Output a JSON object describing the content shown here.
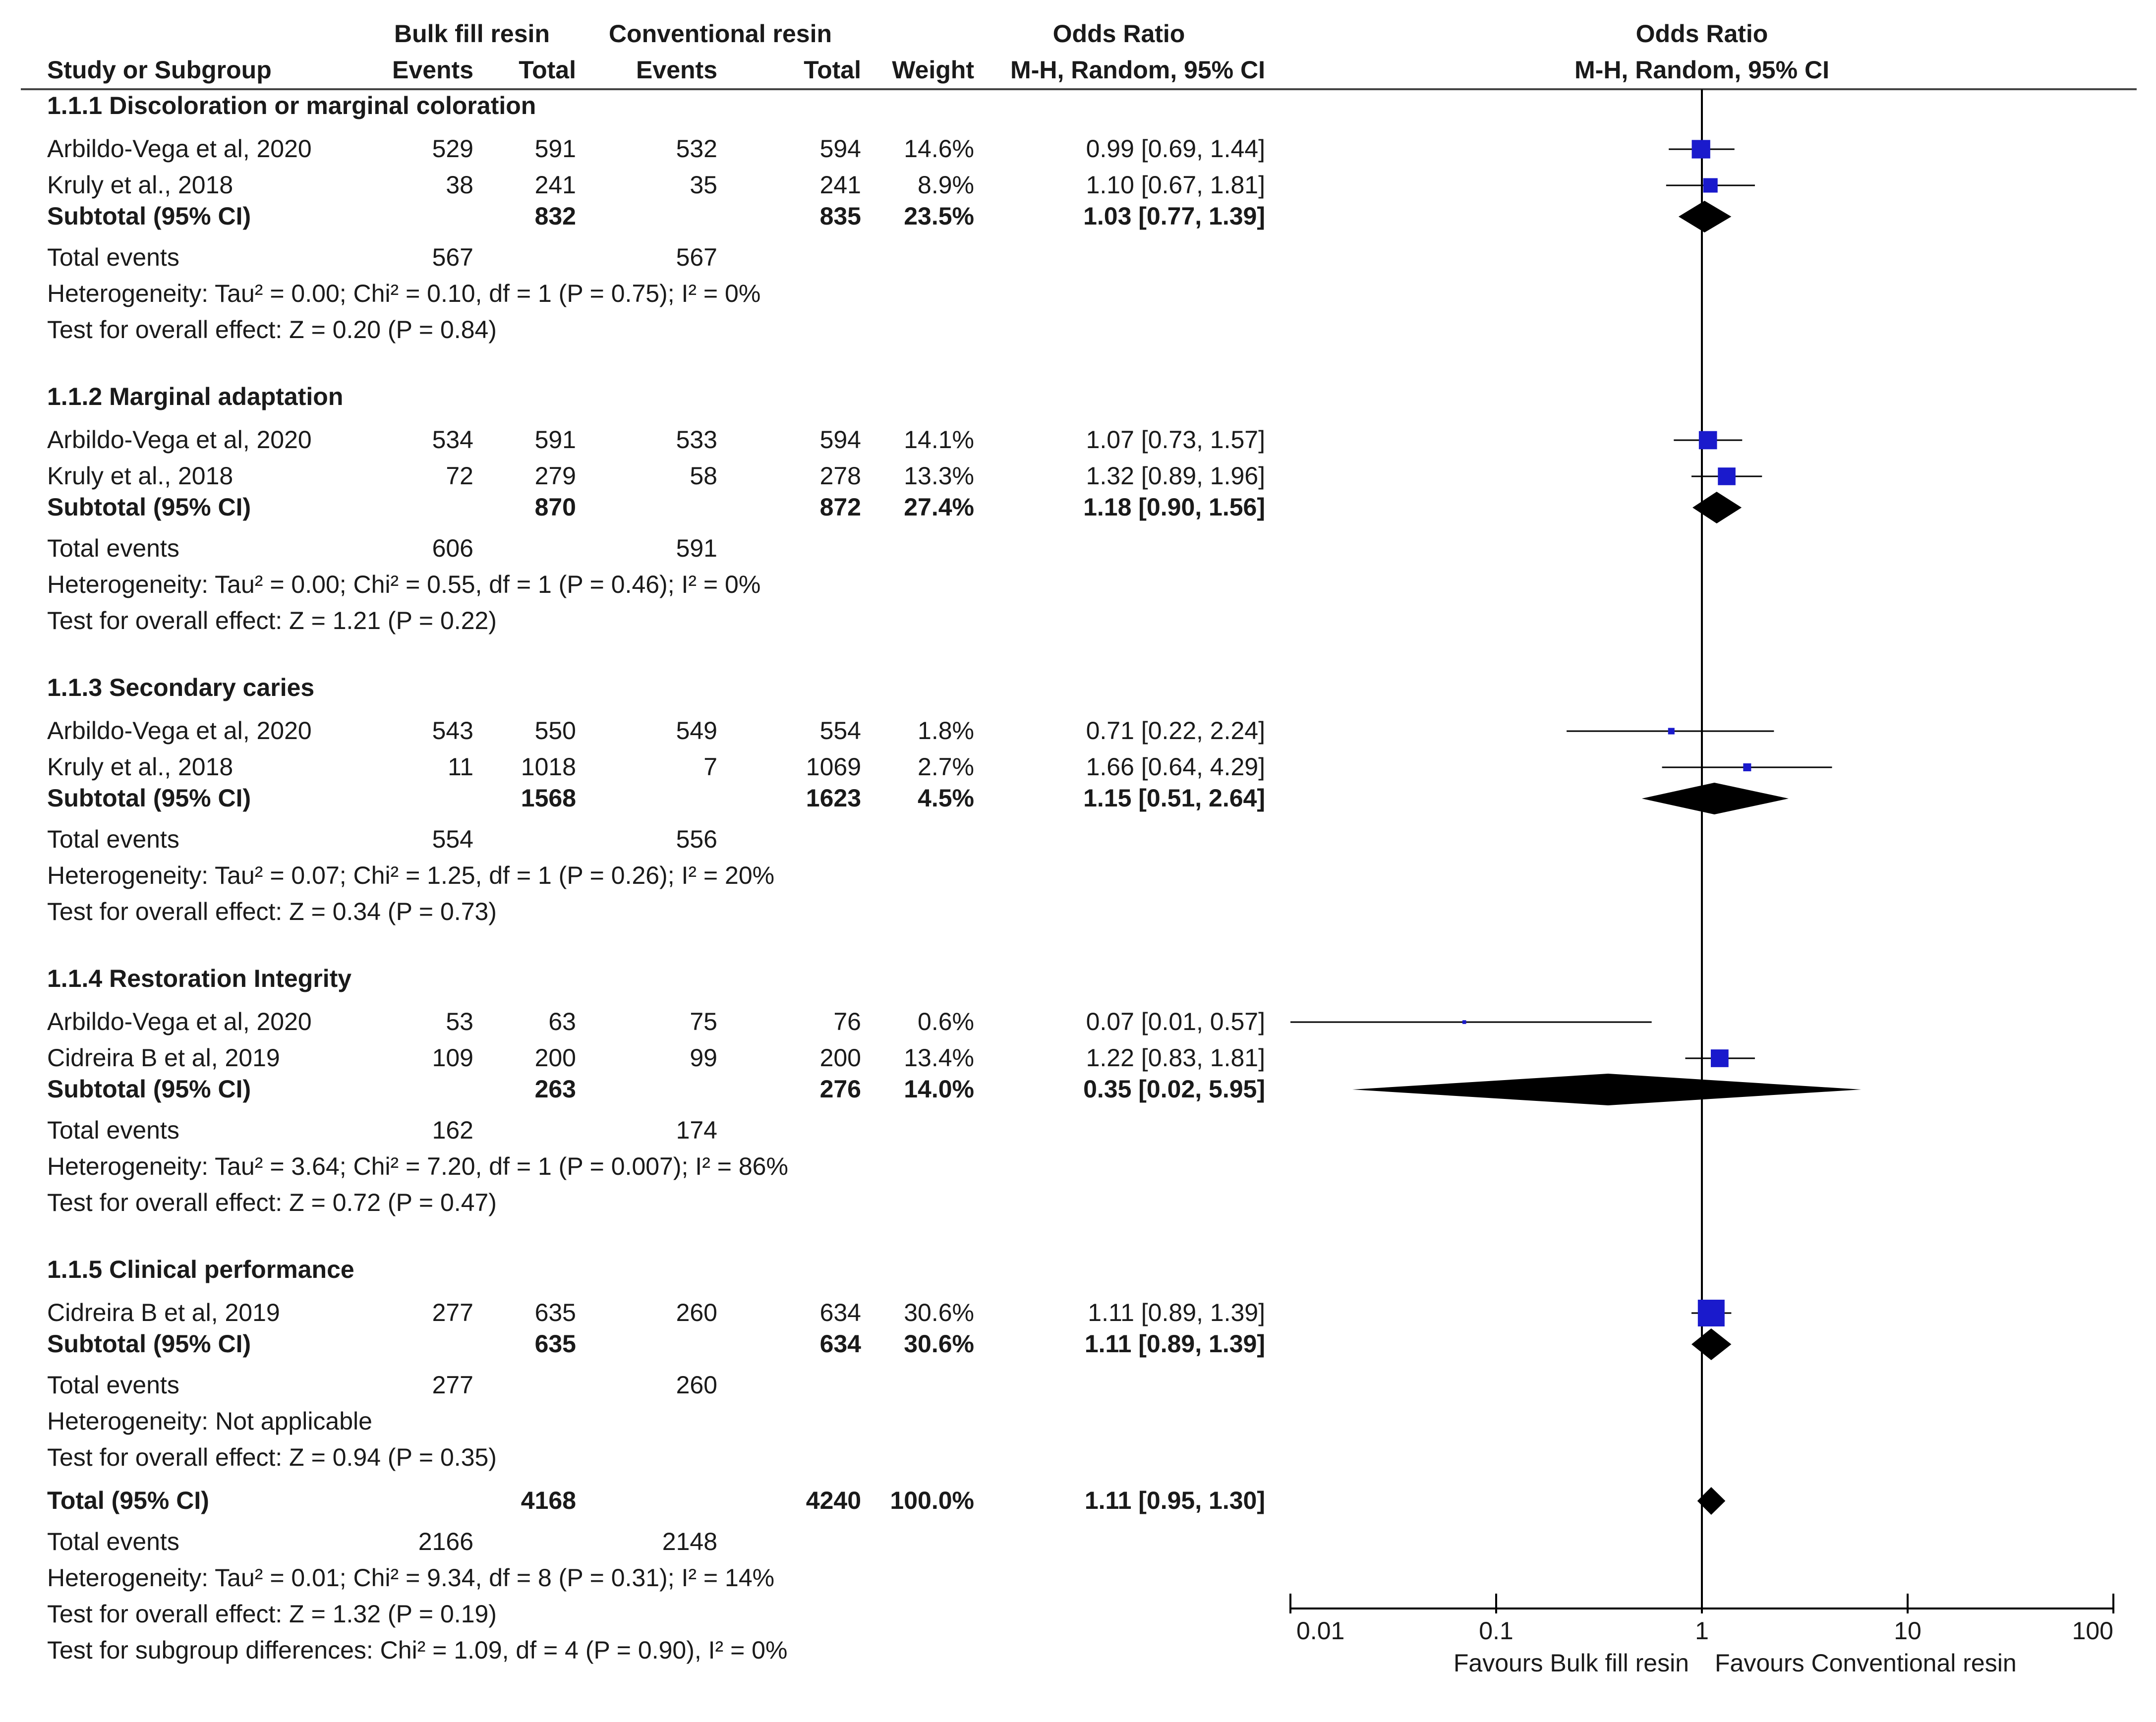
{
  "chart_data": {
    "type": "forest",
    "header": {
      "group1": "Bulk fill resin",
      "group2": "Conventional resin",
      "or_title": "Odds Ratio",
      "col_study": "Study or Subgroup",
      "col_events": "Events",
      "col_total": "Total",
      "col_weight": "Weight",
      "col_method": "M-H, Random, 95% CI"
    },
    "subgroups": [
      {
        "title": "1.1.1 Discoloration or marginal coloration",
        "studies": [
          {
            "name": "Arbildo-Vega et al, 2020",
            "e1": "529",
            "n1": "591",
            "e2": "532",
            "n2": "594",
            "weight": "14.6%",
            "ci_text": "0.99 [0.69, 1.44]",
            "or": 0.99,
            "lo": 0.69,
            "hi": 1.44,
            "w": 14.6
          },
          {
            "name": "Kruly et al., 2018",
            "e1": "38",
            "n1": "241",
            "e2": "35",
            "n2": "241",
            "weight": "8.9%",
            "ci_text": "1.10 [0.67, 1.81]",
            "or": 1.1,
            "lo": 0.67,
            "hi": 1.81,
            "w": 8.9
          }
        ],
        "subtotal": {
          "label": "Subtotal (95% CI)",
          "n1": "832",
          "n2": "835",
          "weight": "23.5%",
          "ci_text": "1.03 [0.77, 1.39]",
          "or": 1.03,
          "lo": 0.77,
          "hi": 1.39
        },
        "total_events": {
          "label": "Total events",
          "e1": "567",
          "e2": "567"
        },
        "heterogeneity": "Heterogeneity: Tau² = 0.00; Chi² = 0.10, df = 1 (P = 0.75); I² = 0%",
        "overall": "Test for overall effect: Z = 0.20 (P = 0.84)"
      },
      {
        "title": "1.1.2 Marginal adaptation",
        "studies": [
          {
            "name": "Arbildo-Vega et al, 2020",
            "e1": "534",
            "n1": "591",
            "e2": "533",
            "n2": "594",
            "weight": "14.1%",
            "ci_text": "1.07 [0.73, 1.57]",
            "or": 1.07,
            "lo": 0.73,
            "hi": 1.57,
            "w": 14.1
          },
          {
            "name": "Kruly et al., 2018",
            "e1": "72",
            "n1": "279",
            "e2": "58",
            "n2": "278",
            "weight": "13.3%",
            "ci_text": "1.32 [0.89, 1.96]",
            "or": 1.32,
            "lo": 0.89,
            "hi": 1.96,
            "w": 13.3
          }
        ],
        "subtotal": {
          "label": "Subtotal (95% CI)",
          "n1": "870",
          "n2": "872",
          "weight": "27.4%",
          "ci_text": "1.18 [0.90, 1.56]",
          "or": 1.18,
          "lo": 0.9,
          "hi": 1.56
        },
        "total_events": {
          "label": "Total events",
          "e1": "606",
          "e2": "591"
        },
        "heterogeneity": "Heterogeneity: Tau² = 0.00; Chi² = 0.55, df = 1 (P = 0.46); I² = 0%",
        "overall": "Test for overall effect: Z = 1.21 (P = 0.22)"
      },
      {
        "title": "1.1.3 Secondary caries",
        "studies": [
          {
            "name": "Arbildo-Vega et al, 2020",
            "e1": "543",
            "n1": "550",
            "e2": "549",
            "n2": "554",
            "weight": "1.8%",
            "ci_text": "0.71 [0.22, 2.24]",
            "or": 0.71,
            "lo": 0.22,
            "hi": 2.24,
            "w": 1.8
          },
          {
            "name": "Kruly et al., 2018",
            "e1": "11",
            "n1": "1018",
            "e2": "7",
            "n2": "1069",
            "weight": "2.7%",
            "ci_text": "1.66 [0.64, 4.29]",
            "or": 1.66,
            "lo": 0.64,
            "hi": 4.29,
            "w": 2.7
          }
        ],
        "subtotal": {
          "label": "Subtotal (95% CI)",
          "n1": "1568",
          "n2": "1623",
          "weight": "4.5%",
          "ci_text": "1.15 [0.51, 2.64]",
          "or": 1.15,
          "lo": 0.51,
          "hi": 2.64
        },
        "total_events": {
          "label": "Total events",
          "e1": "554",
          "e2": "556"
        },
        "heterogeneity": "Heterogeneity: Tau² = 0.07; Chi² = 1.25, df = 1 (P = 0.26); I² = 20%",
        "overall": "Test for overall effect: Z = 0.34 (P = 0.73)"
      },
      {
        "title": "1.1.4 Restoration Integrity",
        "studies": [
          {
            "name": "Arbildo-Vega et al, 2020",
            "e1": "53",
            "n1": "63",
            "e2": "75",
            "n2": "76",
            "weight": "0.6%",
            "ci_text": "0.07 [0.01, 0.57]",
            "or": 0.07,
            "lo": 0.01,
            "hi": 0.57,
            "w": 0.6
          },
          {
            "name": "Cidreira B et al, 2019",
            "e1": "109",
            "n1": "200",
            "e2": "99",
            "n2": "200",
            "weight": "13.4%",
            "ci_text": "1.22 [0.83, 1.81]",
            "or": 1.22,
            "lo": 0.83,
            "hi": 1.81,
            "w": 13.4
          }
        ],
        "subtotal": {
          "label": "Subtotal (95% CI)",
          "n1": "263",
          "n2": "276",
          "weight": "14.0%",
          "ci_text": "0.35 [0.02, 5.95]",
          "or": 0.35,
          "lo": 0.02,
          "hi": 5.95
        },
        "total_events": {
          "label": "Total events",
          "e1": "162",
          "e2": "174"
        },
        "heterogeneity": "Heterogeneity: Tau² = 3.64; Chi² = 7.20, df = 1 (P = 0.007); I² = 86%",
        "overall": "Test for overall effect: Z = 0.72 (P = 0.47)"
      },
      {
        "title": "1.1.5 Clinical performance",
        "studies": [
          {
            "name": "Cidreira B et al, 2019",
            "e1": "277",
            "n1": "635",
            "e2": "260",
            "n2": "634",
            "weight": "30.6%",
            "ci_text": "1.11 [0.89, 1.39]",
            "or": 1.11,
            "lo": 0.89,
            "hi": 1.39,
            "w": 30.6
          }
        ],
        "subtotal": {
          "label": "Subtotal (95% CI)",
          "n1": "635",
          "n2": "634",
          "weight": "30.6%",
          "ci_text": "1.11 [0.89, 1.39]",
          "or": 1.11,
          "lo": 0.89,
          "hi": 1.39
        },
        "total_events": {
          "label": "Total events",
          "e1": "277",
          "e2": "260"
        },
        "heterogeneity": "Heterogeneity: Not applicable",
        "overall": "Test for overall effect: Z = 0.94 (P = 0.35)"
      }
    ],
    "total": {
      "label": "Total (95% CI)",
      "n1": "4168",
      "n2": "4240",
      "weight": "100.0%",
      "ci_text": "1.11 [0.95, 1.30]",
      "or": 1.11,
      "lo": 0.95,
      "hi": 1.3,
      "total_events": {
        "label": "Total events",
        "e1": "2166",
        "e2": "2148"
      },
      "heterogeneity": "Heterogeneity: Tau² = 0.01; Chi² = 9.34, df = 8 (P = 0.31); I² = 14%",
      "overall": "Test for overall effect: Z = 1.32 (P = 0.19)",
      "subgroup_diff": "Test for subgroup differences: Chi² = 1.09, df = 4 (P = 0.90), I² = 0%"
    },
    "axis": {
      "scale": "log",
      "range": [
        0.01,
        100
      ],
      "ticks": [
        0.01,
        0.1,
        1,
        10,
        100
      ],
      "tick_labels": [
        "0.01",
        "0.1",
        "1",
        "10",
        "100"
      ],
      "favours_left": "Favours Bulk fill resin",
      "favours_right": "Favours Conventional resin"
    },
    "colors": {
      "study_marker": "#1a1acc",
      "diamond": "#000000",
      "text": "#1a1a1a"
    }
  }
}
